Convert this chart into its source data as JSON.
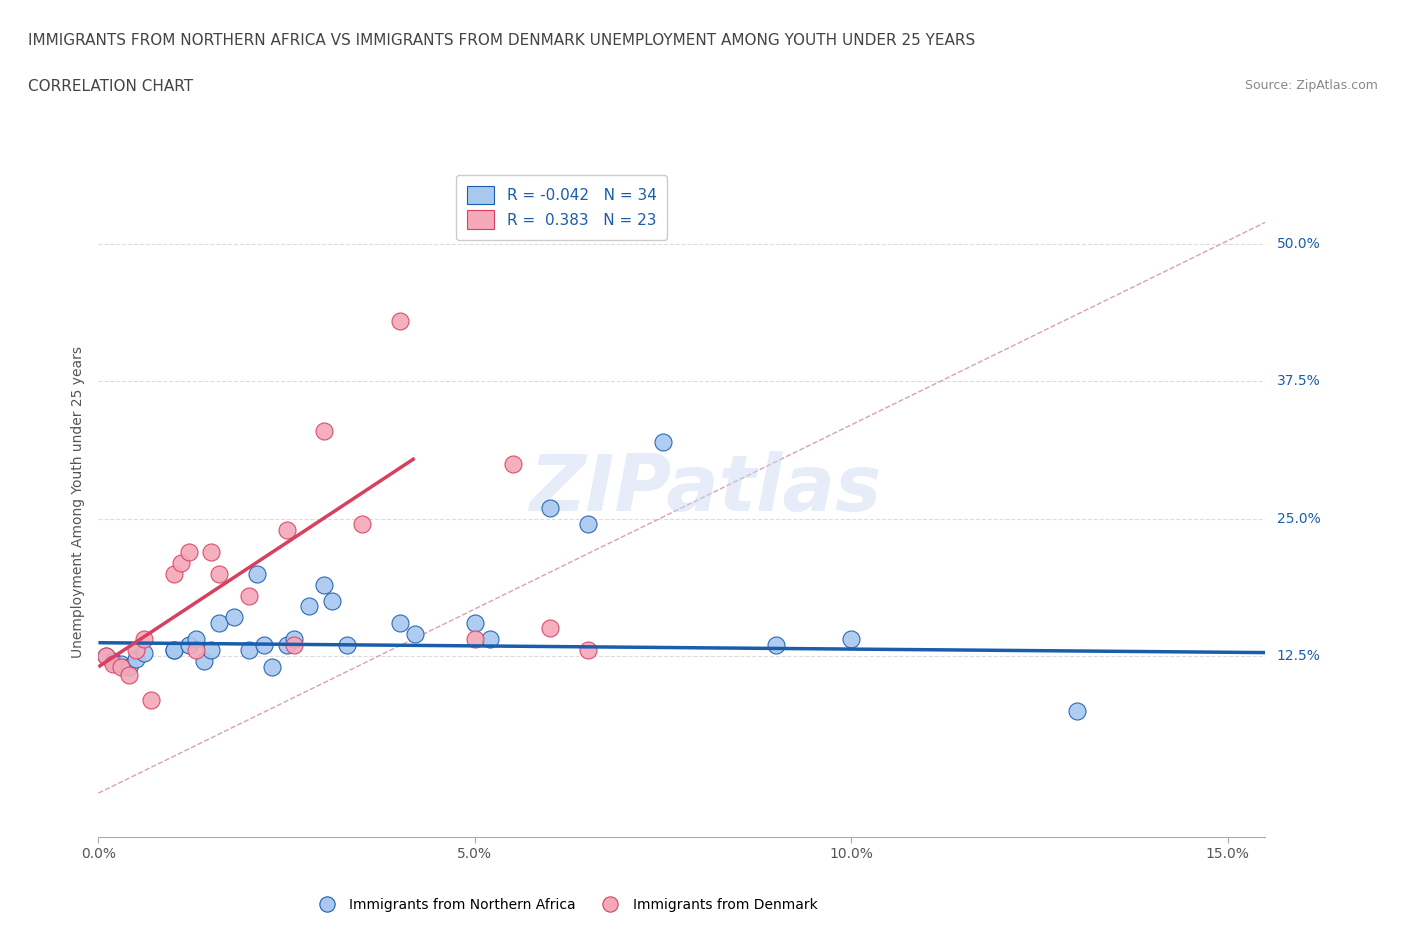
{
  "title_line1": "IMMIGRANTS FROM NORTHERN AFRICA VS IMMIGRANTS FROM DENMARK UNEMPLOYMENT AMONG YOUTH UNDER 25 YEARS",
  "title_line2": "CORRELATION CHART",
  "source": "Source: ZipAtlas.com",
  "ylabel": "Unemployment Among Youth under 25 years",
  "xlim": [
    0.0,
    0.155
  ],
  "ylim": [
    -0.04,
    0.57
  ],
  "yticks": [
    0.125,
    0.25,
    0.375,
    0.5
  ],
  "ytick_labels": [
    "12.5%",
    "25.0%",
    "37.5%",
    "50.0%"
  ],
  "xticks": [
    0.0,
    0.05,
    0.1,
    0.15
  ],
  "xtick_labels": [
    "0.0%",
    "5.0%",
    "10.0%",
    "15.0%"
  ],
  "background_color": "#ffffff",
  "watermark": "ZIPatlas",
  "blue_color": "#A8C8F0",
  "pink_color": "#F4A8B8",
  "blue_line_color": "#1A5DAD",
  "pink_line_color": "#D84060",
  "diag_line_color": "#C0C0D0",
  "legend_R1": "-0.042",
  "legend_N1": "34",
  "legend_R2": "0.383",
  "legend_N2": "23",
  "blue_scatter_x": [
    0.001,
    0.002,
    0.003,
    0.004,
    0.005,
    0.006,
    0.01,
    0.01,
    0.012,
    0.013,
    0.014,
    0.015,
    0.016,
    0.018,
    0.02,
    0.021,
    0.022,
    0.023,
    0.025,
    0.026,
    0.028,
    0.03,
    0.031,
    0.033,
    0.04,
    0.042,
    0.05,
    0.052,
    0.06,
    0.065,
    0.075,
    0.09,
    0.1,
    0.13
  ],
  "blue_scatter_y": [
    0.125,
    0.12,
    0.118,
    0.115,
    0.122,
    0.128,
    0.13,
    0.13,
    0.135,
    0.14,
    0.12,
    0.13,
    0.155,
    0.16,
    0.13,
    0.2,
    0.135,
    0.115,
    0.135,
    0.14,
    0.17,
    0.19,
    0.175,
    0.135,
    0.155,
    0.145,
    0.155,
    0.14,
    0.26,
    0.245,
    0.32,
    0.135,
    0.14,
    0.075
  ],
  "pink_scatter_x": [
    0.001,
    0.002,
    0.003,
    0.004,
    0.005,
    0.006,
    0.007,
    0.01,
    0.011,
    0.012,
    0.013,
    0.015,
    0.016,
    0.02,
    0.025,
    0.026,
    0.03,
    0.035,
    0.04,
    0.05,
    0.055,
    0.06,
    0.065
  ],
  "pink_scatter_y": [
    0.125,
    0.118,
    0.115,
    0.108,
    0.13,
    0.14,
    0.085,
    0.2,
    0.21,
    0.22,
    0.13,
    0.22,
    0.2,
    0.18,
    0.24,
    0.135,
    0.33,
    0.245,
    0.43,
    0.14,
    0.3,
    0.15,
    0.13
  ],
  "blue_trend_x": [
    0.0,
    0.155
  ],
  "blue_trend_y": [
    0.137,
    0.128
  ],
  "pink_trend_x": [
    0.0,
    0.042
  ],
  "pink_trend_y": [
    0.115,
    0.305
  ],
  "diag_line_x": [
    0.0,
    0.155
  ],
  "diag_line_y": [
    0.0,
    0.52
  ],
  "grid_color": "#DDDDDD",
  "title_fontsize": 11,
  "axis_label_fontsize": 10,
  "tick_fontsize": 10,
  "legend_fontsize": 11,
  "scatter_size": 150
}
